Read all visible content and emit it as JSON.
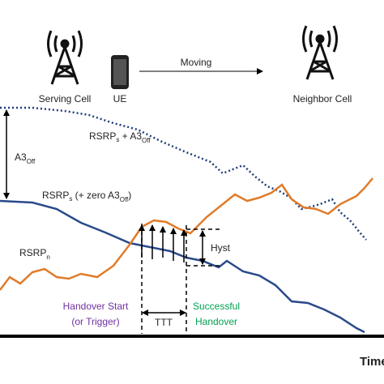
{
  "towers": {
    "serving": "Serving Cell",
    "ue": "UE",
    "moving": "Moving",
    "neighbor": "Neighbor Cell"
  },
  "labels": {
    "rsrp_s_plus": [
      "RSRP",
      "s",
      " + A3",
      "Off"
    ],
    "a3": [
      "A3",
      "Off"
    ],
    "rsrp_s_zero": [
      "RSRP",
      "s",
      " (+ zero A3",
      "Off",
      ")"
    ],
    "rsrp_n": [
      "RSRP",
      "n"
    ],
    "hyst": "Hyst",
    "ttt": "TTT",
    "handover_start": [
      "Handover Start",
      "(or Trigger)"
    ],
    "successful": [
      "Successful",
      "Handover"
    ],
    "time": "Time"
  }
}
